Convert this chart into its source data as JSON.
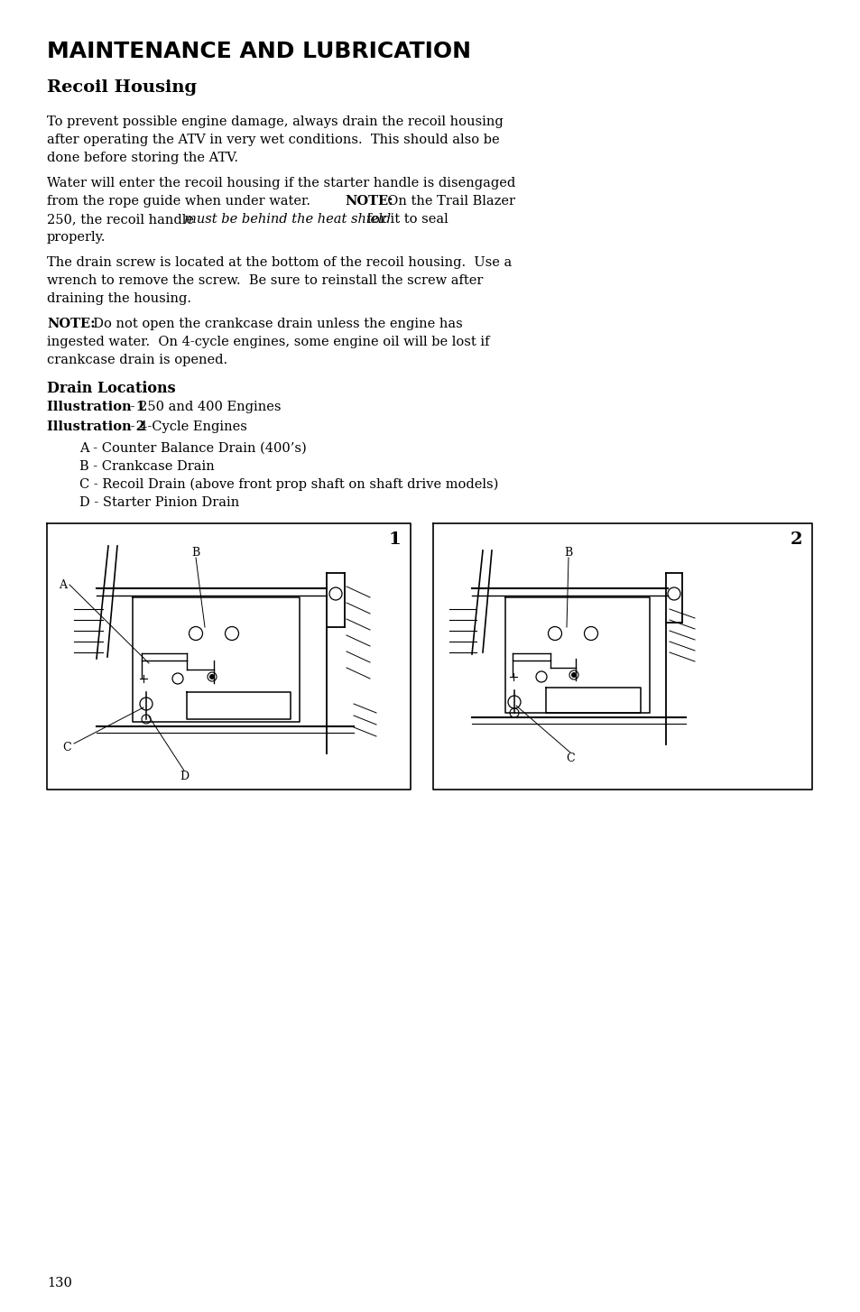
{
  "title": "MAINTENANCE AND LUBRICATION",
  "subtitle": "Recoil Housing",
  "para1_lines": [
    "To prevent possible engine damage, always drain the recoil housing",
    "after operating the ATV in very wet conditions.  This should also be",
    "done before storing the ATV."
  ],
  "para2_line1": "Water will enter the recoil housing if the starter handle is disengaged",
  "para2_line2a": "from the rope guide when under water.  ",
  "para2_line2b": "NOTE:",
  "para2_line2c": "  On the Trail Blazer",
  "para2_line3a": "250, the recoil handle ",
  "para2_line3b": "must be behind the heat shield",
  "para2_line3c": " for it to seal",
  "para2_line4": "properly.",
  "para3_lines": [
    "The drain screw is located at the bottom of the recoil housing.  Use a",
    "wrench to remove the screw.  Be sure to reinstall the screw after",
    "draining the housing."
  ],
  "para4_note": "NOTE:",
  "para4_line1": "  Do not open the crankcase drain unless the engine has",
  "para4_line2": "ingested water.  On 4-cycle engines, some engine oil will be lost if",
  "para4_line3": "crankcase drain is opened.",
  "drain_heading": "Drain Locations",
  "illus1_bold": "Illustration 1",
  "illus1_rest": " - 250 and 400 Engines",
  "illus2_bold": "Illustration 2",
  "illus2_rest": " - 4-Cycle Engines",
  "items": [
    "A - Counter Balance Drain (400’s)",
    "B - Crankcase Drain",
    "C - Recoil Drain (above front prop shaft on shaft drive models)",
    "D - Starter Pinion Drain"
  ],
  "page_num": "130",
  "bg_color": "#ffffff",
  "text_color": "#000000"
}
